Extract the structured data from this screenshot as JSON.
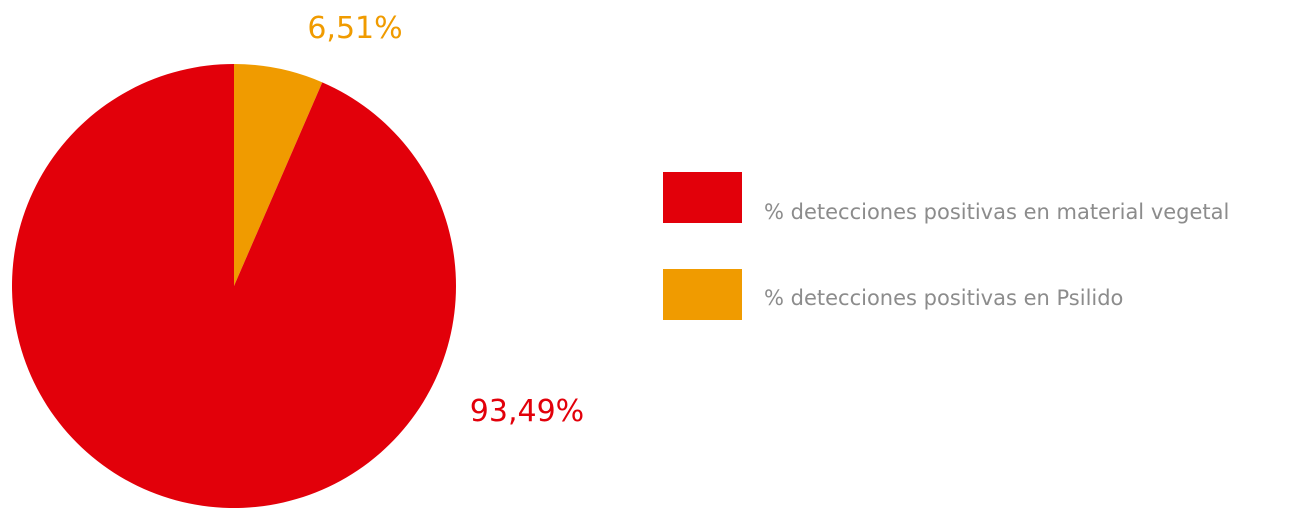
{
  "chart_data": {
    "type": "pie",
    "title": "",
    "start_angle_deg": 0,
    "direction": "clockwise",
    "slices": [
      {
        "label": "% detecciones positivas en Psilido",
        "value": 6.51,
        "value_label": "6,51%",
        "color": "#f09b00"
      },
      {
        "label": "% detecciones positivas en material vegetal",
        "value": 93.49,
        "value_label": "93,49%",
        "color": "#e2000a"
      }
    ],
    "legend": {
      "placement": "right",
      "entries": [
        {
          "label": "% detecciones positivas en material vegetal",
          "color": "#e2000a"
        },
        {
          "label": "% detecciones positivas en Psilido",
          "color": "#f09b00"
        }
      ]
    }
  }
}
